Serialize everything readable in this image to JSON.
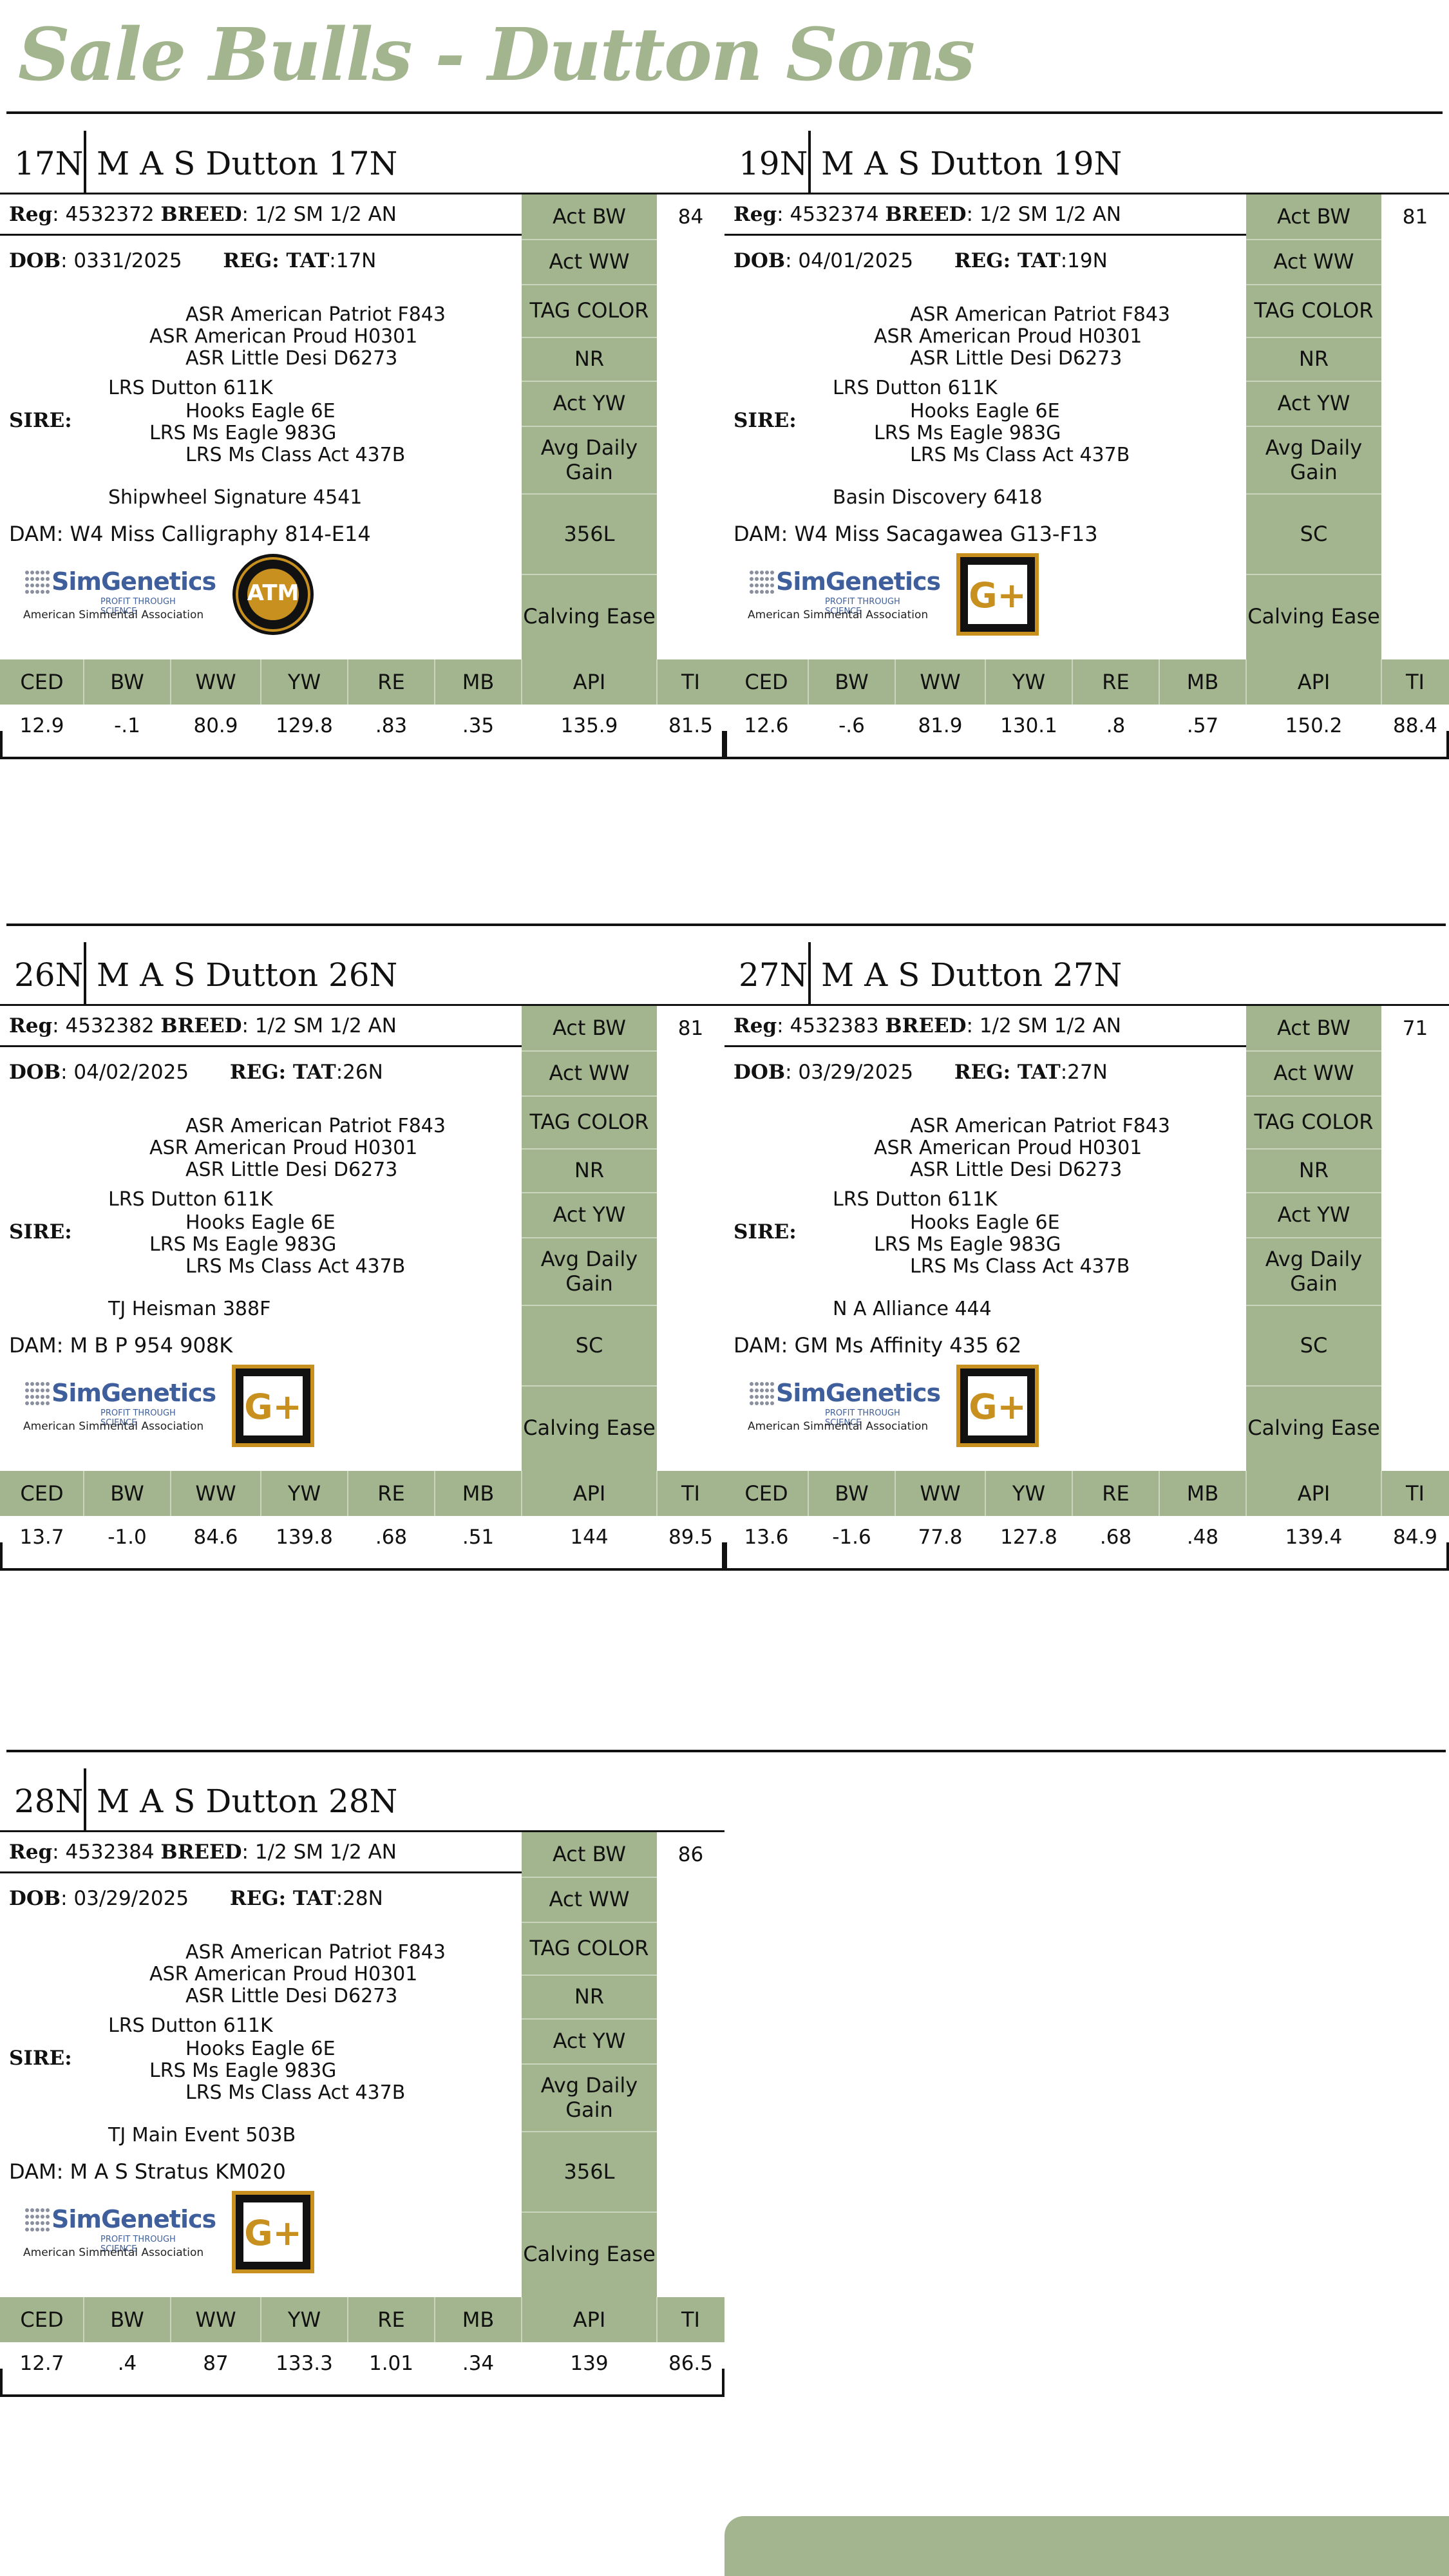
{
  "page": {
    "title": "Sale Bulls - Dutton Sons"
  },
  "labels": {
    "reg": "Reg",
    "breed": "BREED",
    "dob": "DOB",
    "tag": "REG: TAT",
    "sire": "SIRE:",
    "dam_prefix": "DAM:",
    "side": [
      "Act BW",
      "Act WW",
      "TAG COLOR",
      "NR",
      "Act YW",
      "Avg Daily Gain",
      "",
      "Calving Ease"
    ],
    "epd": [
      "CED",
      "BW",
      "WW",
      "YW",
      "RE",
      "MB",
      "API",
      "TI"
    ],
    "simgenetics": {
      "name": "SimGenetics",
      "tagline": "PROFIT THROUGH SCIENCE",
      "assoc": "American Simmental Association"
    },
    "badge_atm": "ATM",
    "badge_gplus": "G+"
  },
  "bulls": [
    {
      "id": "17N",
      "name": "M A S Dutton 17N",
      "reg": "4532372",
      "breed": "1/2 SM 1/2 AN",
      "dob": "0331/2025",
      "tat": "17N",
      "act_bw": "84",
      "sire_sire_sire": "ASR American Patriot F843",
      "sire_sire": "ASR American Proud H0301",
      "sire_sire_dam": "ASR Little Desi D6273",
      "sire": "LRS Dutton 611K",
      "sire_dam_sire": "Hooks Eagle 6E",
      "sire_dam": "LRS Ms Eagle 983G",
      "sire_dam_dam": "LRS Ms Class Act 437B",
      "dam_sire": "Shipwheel Signature 4541",
      "dam": "W4 Miss Calligraphy 814-E14",
      "side_extra": "356L",
      "badge": "atm",
      "epd": [
        "12.9",
        "-.1",
        "80.9",
        "129.8",
        ".83",
        ".35",
        "135.9",
        "81.5"
      ]
    },
    {
      "id": "19N",
      "name": "M A S Dutton 19N",
      "reg": "4532374",
      "breed": "1/2 SM 1/2 AN",
      "dob": "04/01/2025",
      "tat": "19N",
      "act_bw": "81",
      "sire_sire_sire": "ASR American Patriot F843",
      "sire_sire": "ASR American Proud H0301",
      "sire_sire_dam": "ASR Little Desi D6273",
      "sire": "LRS Dutton 611K",
      "sire_dam_sire": "Hooks Eagle 6E",
      "sire_dam": "LRS Ms Eagle 983G",
      "sire_dam_dam": "LRS Ms Class Act 437B",
      "dam_sire": "Basin Discovery 6418",
      "dam": "W4 Miss Sacagawea G13-F13",
      "side_extra": "SC",
      "badge": "gplus",
      "epd": [
        "12.6",
        "-.6",
        "81.9",
        "130.1",
        ".8",
        ".57",
        "150.2",
        "88.4"
      ]
    },
    {
      "id": "26N",
      "name": "M A S Dutton 26N",
      "reg": "4532382",
      "breed": "1/2 SM 1/2 AN",
      "dob": "04/02/2025",
      "tat": "26N",
      "act_bw": "81",
      "sire_sire_sire": "ASR American Patriot F843",
      "sire_sire": "ASR American Proud H0301",
      "sire_sire_dam": "ASR Little Desi D6273",
      "sire": "LRS Dutton 611K",
      "sire_dam_sire": "Hooks Eagle 6E",
      "sire_dam": "LRS Ms Eagle 983G",
      "sire_dam_dam": "LRS Ms Class Act 437B",
      "dam_sire": "TJ Heisman 388F",
      "dam": "M B P 954 908K",
      "side_extra": "SC",
      "badge": "gplus",
      "epd": [
        "13.7",
        "-1.0",
        "84.6",
        "139.8",
        ".68",
        ".51",
        "144",
        "89.5"
      ]
    },
    {
      "id": "27N",
      "name": "M A S Dutton 27N",
      "reg": "4532383",
      "breed": "1/2 SM 1/2 AN",
      "dob": "03/29/2025",
      "tat": "27N",
      "act_bw": "71",
      "sire_sire_sire": "ASR American Patriot F843",
      "sire_sire": "ASR American Proud H0301",
      "sire_sire_dam": "ASR Little Desi D6273",
      "sire": "LRS Dutton 611K",
      "sire_dam_sire": "Hooks Eagle 6E",
      "sire_dam": "LRS Ms Eagle 983G",
      "sire_dam_dam": "LRS Ms Class Act 437B",
      "dam_sire": "N A Alliance 444",
      "dam": "GM Ms Affinity 435 62",
      "side_extra": "SC",
      "badge": "gplus",
      "epd": [
        "13.6",
        "-1.6",
        "77.8",
        "127.8",
        ".68",
        ".48",
        "139.4",
        "84.9"
      ]
    },
    {
      "id": "28N",
      "name": "M A S Dutton 28N",
      "reg": "4532384",
      "breed": "1/2 SM 1/2 AN",
      "dob": "03/29/2025",
      "tat": "28N",
      "act_bw": "86",
      "sire_sire_sire": "ASR American Patriot F843",
      "sire_sire": "ASR American Proud H0301",
      "sire_sire_dam": "ASR Little Desi D6273",
      "sire": "LRS Dutton 611K",
      "sire_dam_sire": "Hooks Eagle 6E",
      "sire_dam": "LRS Ms Eagle 983G",
      "sire_dam_dam": "LRS Ms Class Act 437B",
      "dam_sire": "TJ Main Event 503B",
      "dam": "M A S Stratus KM020",
      "side_extra": "356L",
      "badge": "gplus",
      "epd": [
        "12.7",
        ".4",
        "87",
        "133.3",
        "1.01",
        ".34",
        "139",
        "86.5"
      ]
    }
  ],
  "colors": {
    "accent": "#a3b58e",
    "gold": "#c8901e",
    "simgen_blue": "#3f5f9c"
  }
}
